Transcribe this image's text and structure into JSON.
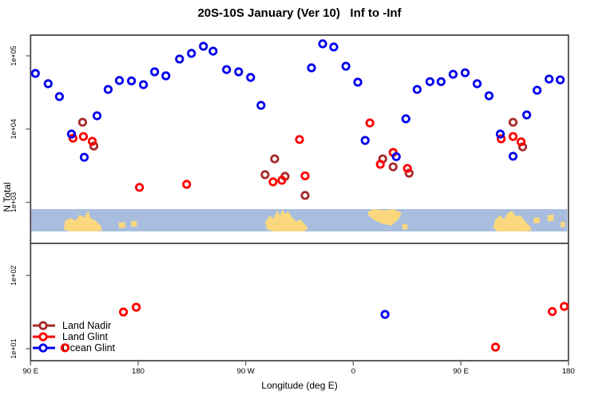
{
  "title": "20S-10S January (Ver 10)   Inf to -Inf",
  "legend": {
    "items": [
      {
        "label": "Land Nadir",
        "color": "#A52A2A"
      },
      {
        "label": "Land Glint",
        "color": "#FF0000"
      },
      {
        "label": "Ocean Glint",
        "color": "#0000EE"
      }
    ]
  },
  "chart_data": {
    "type": "scatter",
    "title": "20S-10S January (Ver 10)   Inf to -Inf",
    "xlabel": "Longitude (deg E)",
    "ylabel": "N Total",
    "x_ticks": [
      {
        "value": 90,
        "label": "90 E"
      },
      {
        "value": 180,
        "label": "180"
      },
      {
        "value": 270,
        "label": "90 W"
      },
      {
        "value": 360,
        "label": "0"
      },
      {
        "value": 450,
        "label": "90 E"
      },
      {
        "value": 540,
        "label": "180"
      }
    ],
    "y_ticks": [
      {
        "value": 100000,
        "label": "1e+05"
      },
      {
        "value": 10000,
        "label": "1e+04"
      },
      {
        "value": 1000,
        "label": "1e+03"
      },
      {
        "value": 100,
        "label": "1e+02"
      },
      {
        "value": 10,
        "label": "1e+01"
      }
    ],
    "xlim": [
      90,
      540
    ],
    "ylim": [
      6.86,
      192000
    ],
    "y_scale": "log",
    "grid": false,
    "legend_position": "bottom-left",
    "marker": "open-circle",
    "series": [
      {
        "name": "Land Nadir",
        "color": "#A52A2A",
        "points": [
          [
            133.5,
            12400
          ],
          [
            142.9,
            5860
          ],
          [
            286.2,
            2380
          ],
          [
            294.2,
            3920
          ],
          [
            302.9,
            2260
          ],
          [
            319.7,
            1240
          ],
          [
            384.6,
            3920
          ],
          [
            393.3,
            3050
          ],
          [
            406.7,
            2500
          ],
          [
            493.7,
            12400
          ],
          [
            501.7,
            5700
          ]
        ]
      },
      {
        "name": "Land Glint",
        "color": "#FF0000",
        "points": [
          [
            125.5,
            7500
          ],
          [
            134.2,
            7900
          ],
          [
            141.6,
            6800
          ],
          [
            181.1,
            1600
          ],
          [
            220.6,
            1760
          ],
          [
            292.9,
            1900
          ],
          [
            300.2,
            2000
          ],
          [
            315.0,
            7200
          ],
          [
            319.7,
            2300
          ],
          [
            373.9,
            12100
          ],
          [
            382.6,
            3300
          ],
          [
            393.3,
            4800
          ],
          [
            405.3,
            2900
          ],
          [
            483.7,
            7350
          ],
          [
            493.7,
            7900
          ],
          [
            500.4,
            6700
          ],
          [
            118.8,
            10.3
          ],
          [
            167.7,
            31.7
          ],
          [
            178.4,
            36.9
          ],
          [
            479.0,
            10.5
          ],
          [
            526.5,
            32.2
          ],
          [
            536.5,
            37.8
          ]
        ]
      },
      {
        "name": "Ocean Glint",
        "color": "#0000EE",
        "points": [
          [
            94.0,
            57600
          ],
          [
            104.7,
            41600
          ],
          [
            114.1,
            27800
          ],
          [
            124.2,
            8550
          ],
          [
            134.9,
            4120
          ],
          [
            145.6,
            15200
          ],
          [
            154.9,
            34800
          ],
          [
            164.3,
            46000
          ],
          [
            174.4,
            45500
          ],
          [
            184.4,
            40400
          ],
          [
            193.8,
            60500
          ],
          [
            203.2,
            53400
          ],
          [
            214.6,
            90500
          ],
          [
            224.6,
            108000
          ],
          [
            234.6,
            135000
          ],
          [
            242.7,
            116000
          ],
          [
            254.0,
            65000
          ],
          [
            264.1,
            60500
          ],
          [
            274.1,
            50800
          ],
          [
            282.8,
            21100
          ],
          [
            325.0,
            68600
          ],
          [
            334.4,
            146000
          ],
          [
            343.7,
            132000
          ],
          [
            353.8,
            72100
          ],
          [
            363.8,
            43700
          ],
          [
            369.9,
            7000
          ],
          [
            396.0,
            4200
          ],
          [
            404.0,
            13800
          ],
          [
            413.4,
            34800
          ],
          [
            424.1,
            44500
          ],
          [
            433.5,
            44500
          ],
          [
            443.5,
            56000
          ],
          [
            453.6,
            58800
          ],
          [
            463.6,
            41600
          ],
          [
            473.6,
            28500
          ],
          [
            483.0,
            8550
          ],
          [
            493.7,
            4250
          ],
          [
            505.1,
            15600
          ],
          [
            513.8,
            33900
          ],
          [
            523.8,
            48200
          ],
          [
            533.2,
            47000
          ],
          [
            386.6,
            29.4
          ]
        ]
      }
    ],
    "map_strip": {
      "ocean_color": "#A9BEDF",
      "land_color": "#FBD77D",
      "land": [
        {
          "name": "australia",
          "poly": [
            [
              0.062,
              0.93
            ],
            [
              0.064,
              0.52
            ],
            [
              0.075,
              0.4
            ],
            [
              0.084,
              0.52
            ],
            [
              0.091,
              0.25
            ],
            [
              0.099,
              0.38
            ],
            [
              0.107,
              0.1
            ],
            [
              0.112,
              0.42
            ],
            [
              0.121,
              0.52
            ],
            [
              0.13,
              0.72
            ],
            [
              0.133,
              0.97
            ],
            [
              0.117,
              1.0
            ],
            [
              0.074,
              1.0
            ]
          ]
        },
        {
          "name": "island",
          "poly": [
            [
              0.163,
              0.62
            ],
            [
              0.175,
              0.58
            ],
            [
              0.177,
              0.82
            ],
            [
              0.165,
              0.86
            ]
          ]
        },
        {
          "name": "island",
          "poly": [
            [
              0.186,
              0.55
            ],
            [
              0.197,
              0.52
            ],
            [
              0.198,
              0.78
            ],
            [
              0.188,
              0.8
            ]
          ]
        },
        {
          "name": "south-america",
          "poly": [
            [
              0.436,
              0.62
            ],
            [
              0.444,
              0.3
            ],
            [
              0.452,
              0.42
            ],
            [
              0.459,
              0.05
            ],
            [
              0.464,
              0.3
            ],
            [
              0.468,
              0.0
            ],
            [
              0.473,
              0.22
            ],
            [
              0.479,
              0.1
            ],
            [
              0.486,
              0.38
            ],
            [
              0.494,
              0.55
            ],
            [
              0.502,
              0.48
            ],
            [
              0.51,
              0.68
            ],
            [
              0.516,
              0.88
            ],
            [
              0.508,
              1.0
            ],
            [
              0.452,
              1.0
            ],
            [
              0.44,
              0.92
            ]
          ]
        },
        {
          "name": "africa",
          "poly": [
            [
              0.627,
              0.12
            ],
            [
              0.638,
              0.0
            ],
            [
              0.658,
              0.06
            ],
            [
              0.674,
              0.0
            ],
            [
              0.69,
              0.16
            ],
            [
              0.684,
              0.46
            ],
            [
              0.67,
              0.74
            ],
            [
              0.652,
              0.64
            ],
            [
              0.638,
              0.48
            ],
            [
              0.629,
              0.3
            ]
          ]
        },
        {
          "name": "island",
          "poly": [
            [
              0.691,
              0.68
            ],
            [
              0.7,
              0.66
            ],
            [
              0.701,
              0.9
            ],
            [
              0.692,
              0.92
            ]
          ]
        },
        {
          "name": "australia2",
          "poly": [
            [
              0.86,
              0.82
            ],
            [
              0.864,
              0.5
            ],
            [
              0.872,
              0.28
            ],
            [
              0.88,
              0.46
            ],
            [
              0.887,
              0.18
            ],
            [
              0.895,
              0.08
            ],
            [
              0.903,
              0.34
            ],
            [
              0.911,
              0.28
            ],
            [
              0.919,
              0.55
            ],
            [
              0.927,
              0.72
            ],
            [
              0.932,
              0.96
            ],
            [
              0.918,
              1.0
            ],
            [
              0.868,
              1.0
            ]
          ]
        },
        {
          "name": "island",
          "poly": [
            [
              0.935,
              0.4
            ],
            [
              0.946,
              0.36
            ],
            [
              0.947,
              0.62
            ],
            [
              0.936,
              0.64
            ]
          ]
        },
        {
          "name": "island",
          "poly": [
            [
              0.961,
              0.28
            ],
            [
              0.972,
              0.24
            ],
            [
              0.973,
              0.52
            ],
            [
              0.962,
              0.55
            ]
          ]
        },
        {
          "name": "island",
          "poly": [
            [
              0.985,
              0.58
            ],
            [
              0.993,
              0.56
            ],
            [
              0.994,
              0.8
            ],
            [
              0.986,
              0.82
            ]
          ]
        }
      ]
    }
  }
}
